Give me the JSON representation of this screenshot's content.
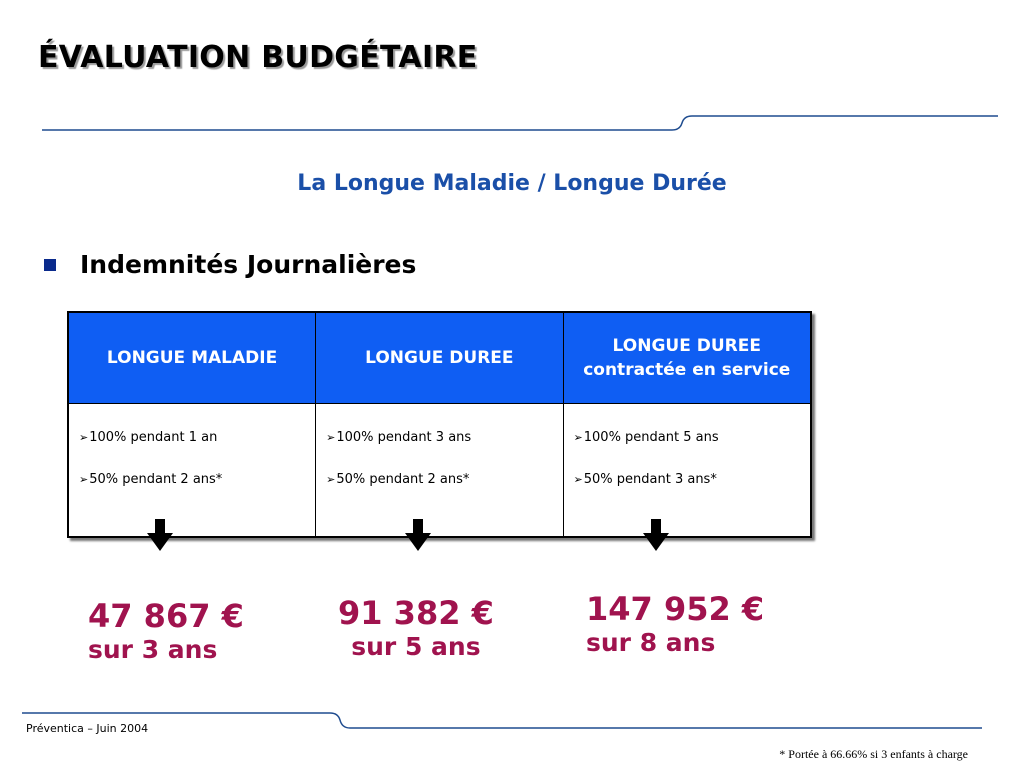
{
  "slide": {
    "title": "ÉVALUATION BUDGÉTAIRE",
    "subtitle": "La Longue Maladie / Longue Durée",
    "bullet": "Indemnités Journalières"
  },
  "table": {
    "headers": [
      "LONGUE MALADIE",
      "LONGUE DUREE",
      "LONGUE DUREE contractée en service"
    ],
    "columns": [
      [
        "100% pendant 1 an",
        "50% pendant 2 ans*"
      ],
      [
        "100% pendant 3 ans",
        "50% pendant 2 ans*"
      ],
      [
        "100% pendant 5 ans",
        "50% pendant 3 ans*"
      ]
    ],
    "bullet_glyph": "➢"
  },
  "results": [
    {
      "amount": "47 867 €",
      "duration": "sur 3 ans"
    },
    {
      "amount": "91 382 €",
      "duration": "sur 5 ans"
    },
    {
      "amount": "147 952 €",
      "duration": "sur 8 ans"
    }
  ],
  "footer": {
    "left": "Préventica – Juin 2004",
    "note": "* Portée à 66.66% si 3 enfants à charge"
  },
  "colors": {
    "header_bg": "#0f5ef3",
    "subtitle": "#1a4fa8",
    "amount": "#a0134e",
    "rule": "#1f4c8f",
    "bullet": "#0a2a8c"
  },
  "icons": {
    "down_arrow": "bold-down-arrow-icon",
    "bullet": "square-bullet-icon"
  }
}
